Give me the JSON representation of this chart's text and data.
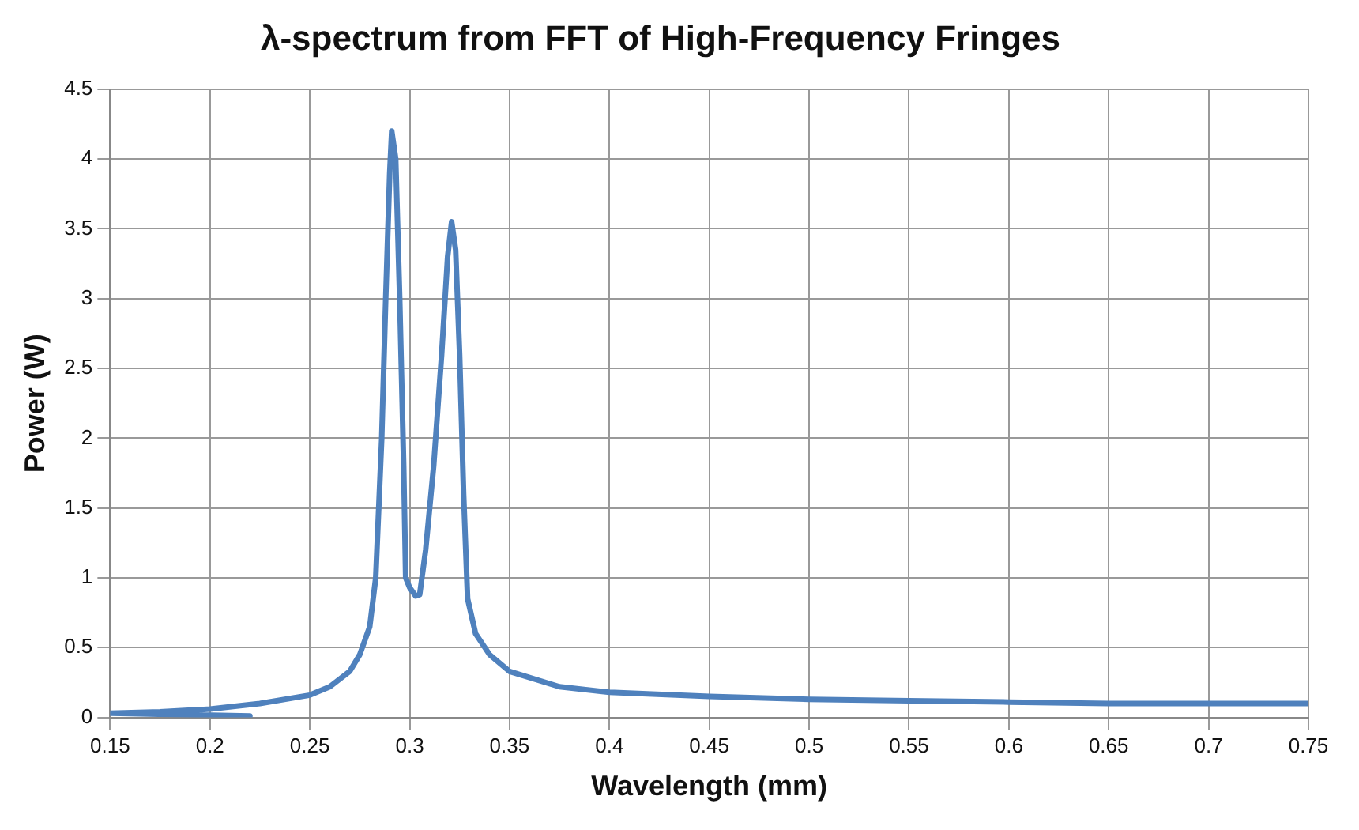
{
  "chart_data": {
    "type": "line",
    "title": "λ-spectrum from FFT of High-Frequency Fringes",
    "xlabel": "Wavelength (mm)",
    "ylabel": "Power (W)",
    "series": [
      {
        "color": "#4f81bd",
        "x": [
          0.22,
          0.15,
          0.175,
          0.2,
          0.225,
          0.25,
          0.26,
          0.27,
          0.275,
          0.28,
          0.283,
          0.286,
          0.288,
          0.29,
          0.291,
          0.293,
          0.295,
          0.297,
          0.298,
          0.3,
          0.303,
          0.305,
          0.308,
          0.312,
          0.316,
          0.319,
          0.321,
          0.323,
          0.325,
          0.327,
          0.329,
          0.333,
          0.34,
          0.35,
          0.375,
          0.4,
          0.45,
          0.5,
          0.55,
          0.6,
          0.65,
          0.7,
          0.75
        ],
        "values": [
          0.01,
          0.03,
          0.04,
          0.06,
          0.1,
          0.16,
          0.22,
          0.33,
          0.45,
          0.65,
          1.0,
          2.0,
          3.0,
          3.9,
          4.2,
          4.0,
          3.0,
          1.8,
          1.0,
          0.93,
          0.87,
          0.88,
          1.2,
          1.8,
          2.6,
          3.3,
          3.55,
          3.35,
          2.6,
          1.6,
          0.85,
          0.6,
          0.45,
          0.33,
          0.22,
          0.18,
          0.15,
          0.13,
          0.12,
          0.11,
          0.1,
          0.1,
          0.1
        ]
      }
    ],
    "xlim": [
      0.15,
      0.75
    ],
    "xticks": [
      0.15,
      0.2,
      0.25,
      0.3,
      0.35,
      0.4,
      0.45,
      0.5,
      0.55,
      0.6,
      0.65,
      0.7,
      0.75
    ],
    "ylim": [
      0,
      4.5
    ],
    "yticks": [
      0,
      0.5,
      1,
      1.5,
      2,
      2.5,
      3,
      3.5,
      4,
      4.5
    ],
    "grid": true,
    "legend": false,
    "marker": "none",
    "line_style": "solid"
  }
}
